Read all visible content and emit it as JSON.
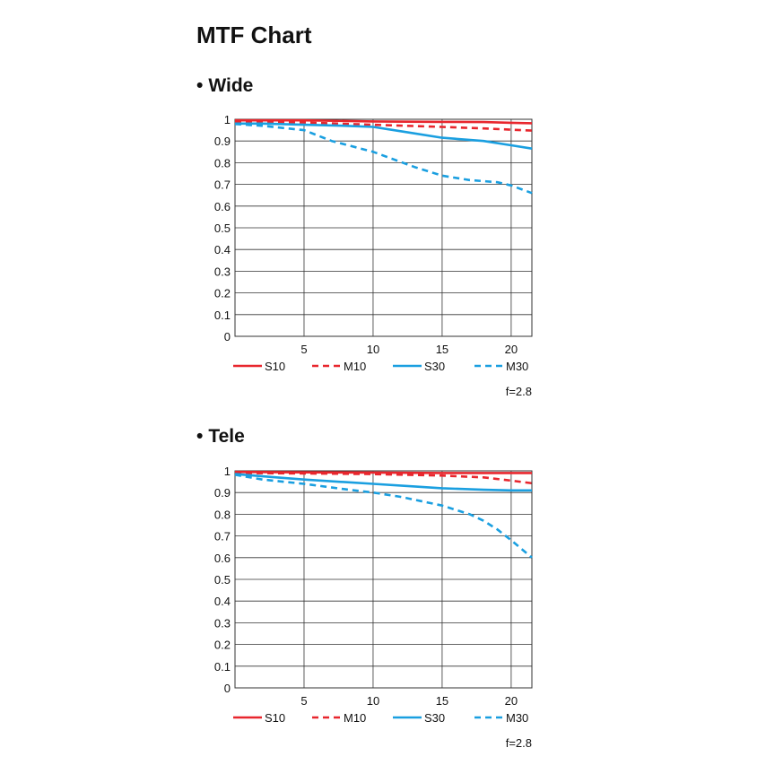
{
  "page": {
    "title": "MTF Chart"
  },
  "sections": [
    {
      "title": "Wide",
      "bullet": "•",
      "aperture": "f=2.8"
    },
    {
      "title": "Tele",
      "bullet": "•",
      "aperture": "f=2.8"
    }
  ],
  "chart_data": [
    {
      "type": "line",
      "title": "Wide",
      "xlim": [
        0,
        21.5
      ],
      "ylim": [
        0,
        1
      ],
      "xticks": [
        5,
        10,
        15,
        20
      ],
      "yticks": [
        0,
        0.1,
        0.2,
        0.3,
        0.4,
        0.5,
        0.6,
        0.7,
        0.8,
        0.9,
        1
      ],
      "grid": true,
      "legend": "bottom",
      "series": [
        {
          "name": "S10",
          "color": "#e8262d",
          "dash": "solid",
          "x": [
            0,
            5,
            10,
            15,
            18,
            20,
            21.5
          ],
          "y": [
            0.995,
            0.995,
            0.99,
            0.988,
            0.987,
            0.984,
            0.982
          ]
        },
        {
          "name": "M10",
          "color": "#e8262d",
          "dash": "dashed",
          "x": [
            0,
            5,
            10,
            15,
            18,
            20,
            21.5
          ],
          "y": [
            0.99,
            0.985,
            0.975,
            0.965,
            0.958,
            0.952,
            0.948
          ]
        },
        {
          "name": "S30",
          "color": "#1a9fe0",
          "dash": "solid",
          "x": [
            0,
            2,
            5,
            8,
            10,
            12,
            15,
            18,
            20,
            21.5
          ],
          "y": [
            0.98,
            0.98,
            0.975,
            0.97,
            0.965,
            0.945,
            0.915,
            0.9,
            0.88,
            0.865
          ]
        },
        {
          "name": "M30",
          "color": "#1a9fe0",
          "dash": "dashed",
          "x": [
            0,
            2,
            5,
            7,
            10,
            13,
            15,
            17,
            19,
            20,
            21.5
          ],
          "y": [
            0.978,
            0.97,
            0.95,
            0.9,
            0.85,
            0.78,
            0.74,
            0.72,
            0.71,
            0.695,
            0.66
          ]
        }
      ]
    },
    {
      "type": "line",
      "title": "Tele",
      "xlim": [
        0,
        21.5
      ],
      "ylim": [
        0,
        1
      ],
      "xticks": [
        5,
        10,
        15,
        20
      ],
      "yticks": [
        0,
        0.1,
        0.2,
        0.3,
        0.4,
        0.5,
        0.6,
        0.7,
        0.8,
        0.9,
        1
      ],
      "grid": true,
      "legend": "bottom",
      "series": [
        {
          "name": "S10",
          "color": "#e8262d",
          "dash": "solid",
          "x": [
            0,
            5,
            10,
            15,
            20,
            21.5
          ],
          "y": [
            0.995,
            0.993,
            0.992,
            0.99,
            0.99,
            0.99
          ]
        },
        {
          "name": "M10",
          "color": "#e8262d",
          "dash": "dashed",
          "x": [
            0,
            5,
            10,
            15,
            18,
            20,
            21.5
          ],
          "y": [
            0.99,
            0.988,
            0.985,
            0.978,
            0.97,
            0.955,
            0.943
          ]
        },
        {
          "name": "S30",
          "color": "#1a9fe0",
          "dash": "solid",
          "x": [
            0,
            3,
            5,
            8,
            10,
            13,
            15,
            18,
            20,
            21.5
          ],
          "y": [
            0.985,
            0.97,
            0.96,
            0.948,
            0.94,
            0.928,
            0.92,
            0.913,
            0.91,
            0.91
          ]
        },
        {
          "name": "M30",
          "color": "#1a9fe0",
          "dash": "dashed",
          "x": [
            0,
            2,
            5,
            8,
            10,
            12,
            15,
            17,
            18,
            19,
            20,
            21.5
          ],
          "y": [
            0.982,
            0.96,
            0.94,
            0.915,
            0.9,
            0.88,
            0.84,
            0.8,
            0.77,
            0.73,
            0.68,
            0.6
          ]
        }
      ]
    }
  ]
}
